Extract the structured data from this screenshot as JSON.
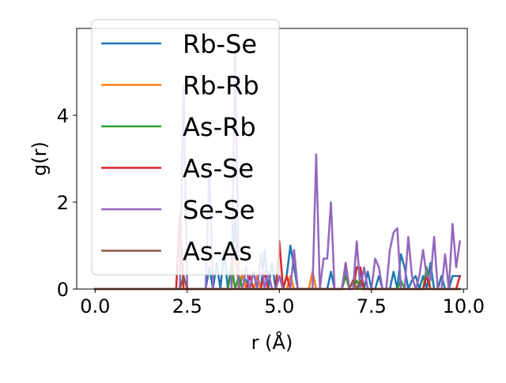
{
  "chart_data": {
    "type": "line",
    "xlabel": "r (Å)",
    "ylabel": "g(r)",
    "xlim": [
      -0.5,
      10.1
    ],
    "ylim": [
      0,
      6.0
    ],
    "xticks": [
      "0.0",
      "2.5",
      "5.0",
      "7.5",
      "10.0"
    ],
    "yticks": [
      "0",
      "2",
      "4"
    ],
    "grid": false,
    "legend_position": "upper-left",
    "series": [
      {
        "name": "Rb-Se",
        "color": "#1f77b4",
        "x": [
          0,
          2.9,
          3.0,
          3.1,
          3.2,
          3.3,
          3.4,
          3.5,
          3.6,
          3.7,
          3.8,
          3.9,
          4.0,
          4.1,
          4.2,
          4.3,
          4.4,
          4.5,
          4.6,
          4.7,
          4.8,
          4.9,
          5.0,
          5.1,
          5.2,
          5.3,
          5.4,
          5.5,
          5.6,
          5.7,
          5.8,
          5.9,
          6.0,
          6.1,
          6.2,
          6.3,
          6.4,
          6.5,
          6.6,
          6.7,
          6.8,
          6.9,
          7.0,
          7.1,
          7.2,
          7.3,
          7.4,
          7.5,
          7.6,
          7.7,
          7.8,
          7.9,
          8.0,
          8.1,
          8.2,
          8.3,
          8.4,
          8.5,
          8.6,
          8.7,
          8.8,
          8.9,
          9.0,
          9.1,
          9.2,
          9.3,
          9.4,
          9.5,
          9.6,
          9.7,
          9.8,
          9.9
        ],
        "y": [
          0,
          0,
          0,
          0.5,
          0,
          0.6,
          0,
          0.9,
          0,
          0.4,
          1.6,
          0,
          0.3,
          0.2,
          0,
          0.4,
          0,
          0,
          0.9,
          0,
          0.6,
          0,
          0.3,
          0,
          0.3,
          1.0,
          0.5,
          0,
          0,
          0,
          0,
          0,
          0,
          0,
          0,
          0,
          0.4,
          0,
          0,
          0,
          0.5,
          0,
          0,
          0.5,
          0.4,
          0,
          0.4,
          0,
          0,
          0.3,
          0,
          0,
          0,
          0.4,
          0,
          0.8,
          0.5,
          0,
          0.2,
          0.3,
          0,
          0.3,
          0,
          0.6,
          0,
          0,
          0.3,
          0,
          0,
          0.3,
          0.3,
          0.3
        ]
      },
      {
        "name": "Rb-Rb",
        "color": "#ff7f0e",
        "x": [
          0,
          3.7,
          3.8,
          3.9,
          4.0,
          4.1,
          4.2,
          4.3,
          4.4,
          4.5,
          4.6,
          4.7,
          4.8,
          4.9,
          5.0,
          5.1,
          5.2,
          5.3,
          5.4,
          5.5,
          5.6,
          5.7,
          5.8,
          5.9,
          6.0,
          6.1,
          6.2,
          6.3,
          6.4,
          6.5,
          6.6,
          6.7,
          6.8,
          6.9,
          7.0,
          7.1,
          7.2,
          7.3,
          7.4,
          7.5,
          7.6,
          7.7,
          7.8,
          7.9,
          8.0,
          8.1,
          8.2,
          8.3,
          8.4,
          8.5,
          8.6,
          8.7,
          8.8,
          8.9,
          9.0,
          9.1,
          9.2,
          9.3,
          9.4,
          9.5,
          9.6,
          9.7,
          9.8,
          9.9
        ],
        "y": [
          0,
          0,
          0.9,
          0,
          0.4,
          0,
          0,
          0,
          0.3,
          0,
          0,
          0,
          0,
          0,
          0.3,
          0,
          0,
          0.3,
          0,
          0,
          0,
          0,
          0,
          0.4,
          0,
          0,
          0,
          0,
          0,
          0,
          0,
          0,
          0.6,
          0,
          0,
          0,
          0,
          0,
          0,
          0,
          0,
          0,
          0,
          0,
          0,
          0,
          0,
          0,
          0,
          0,
          0,
          0,
          0,
          0,
          0,
          0,
          0,
          0,
          0,
          0,
          0,
          0,
          0,
          0
        ]
      },
      {
        "name": "As-Rb",
        "color": "#2ca02c",
        "x": [
          0,
          3.6,
          3.7,
          3.8,
          3.9,
          4.0,
          4.1,
          4.2,
          4.3,
          4.4,
          4.5,
          4.6,
          4.7,
          4.8,
          4.9,
          5.0,
          5.1,
          5.2,
          5.3,
          5.4,
          5.5,
          5.6,
          5.7,
          5.8,
          5.9,
          6.0,
          6.1,
          6.2,
          6.3,
          6.4,
          6.5,
          6.6,
          6.7,
          6.8,
          6.9,
          7.0,
          7.1,
          7.2,
          7.3,
          7.4,
          7.5,
          7.6,
          7.7,
          7.8,
          7.9,
          8.0,
          8.1,
          8.2,
          8.3,
          8.4,
          8.5,
          8.6,
          8.7,
          8.8,
          8.9,
          9.0,
          9.1,
          9.2,
          9.3,
          9.4,
          9.5,
          9.6,
          9.7,
          9.8,
          9.9
        ],
        "y": [
          0,
          0,
          0.6,
          0,
          0.3,
          0,
          0,
          0,
          0,
          0,
          0,
          0,
          0,
          0,
          0,
          0,
          0,
          0,
          0,
          0,
          0,
          0,
          0,
          0,
          0,
          0,
          0,
          0,
          0,
          0,
          0,
          0,
          0,
          0.3,
          0,
          0,
          0.2,
          0,
          0,
          0,
          0,
          0,
          0,
          0,
          0,
          0,
          0,
          0,
          0.2,
          0,
          0,
          0,
          0,
          0,
          0,
          0.5,
          0,
          0,
          0,
          0,
          0,
          0,
          0,
          0,
          0
        ]
      },
      {
        "name": "As-Se",
        "color": "#d62728",
        "x": [
          0,
          2.2,
          2.3,
          2.4,
          2.5,
          2.6,
          2.7,
          2.8,
          2.9,
          3.0,
          3.1,
          3.2,
          3.3,
          3.4,
          3.5,
          3.6,
          3.7,
          3.8,
          3.9,
          4.0,
          4.1,
          4.2,
          4.3,
          4.4,
          4.5,
          4.6,
          4.7,
          4.8,
          4.9,
          5.0,
          5.1,
          5.2,
          5.3,
          5.4,
          5.5,
          5.6,
          5.7,
          5.8,
          5.9,
          6.0,
          6.1,
          6.2,
          6.3,
          6.4,
          6.5,
          6.6,
          6.7,
          6.8,
          6.9,
          7.0,
          7.1,
          7.2,
          7.3,
          7.4,
          7.5,
          7.6,
          7.7,
          7.8,
          7.9,
          8.0,
          8.1,
          8.2,
          8.3,
          8.4,
          8.5,
          8.6,
          8.7,
          8.8,
          8.9,
          9.0,
          9.1,
          9.2,
          9.3,
          9.4,
          9.5,
          9.6,
          9.7,
          9.8,
          9.9
        ],
        "y": [
          0,
          0,
          1.7,
          0,
          0,
          0,
          0,
          0,
          0,
          0,
          0,
          0,
          0,
          0,
          0,
          0,
          0,
          0,
          0,
          0,
          0,
          0.3,
          0,
          0,
          0,
          0.4,
          0,
          0,
          0,
          1.1,
          0,
          0.3,
          0,
          0,
          0,
          0,
          0,
          0,
          0,
          0,
          0,
          0,
          0,
          0,
          0,
          0,
          0,
          0.6,
          0,
          0,
          0.5,
          0.5,
          0,
          0,
          0,
          0,
          0,
          0,
          0,
          0,
          0,
          0,
          0,
          0,
          0,
          0,
          0,
          0,
          0,
          0.3,
          0,
          0,
          0,
          0,
          0,
          0,
          0,
          0,
          0.3
        ]
      },
      {
        "name": "Se-Se",
        "color": "#9467bd",
        "x": [
          0,
          2.3,
          2.4,
          2.5,
          2.6,
          2.7,
          2.8,
          2.9,
          3.0,
          3.1,
          3.2,
          3.3,
          3.4,
          3.5,
          3.6,
          3.7,
          3.8,
          3.9,
          4.0,
          4.1,
          4.2,
          4.3,
          4.4,
          4.5,
          4.6,
          4.7,
          4.8,
          4.9,
          5.0,
          5.1,
          5.2,
          5.3,
          5.4,
          5.5,
          5.6,
          5.7,
          5.8,
          5.9,
          6.0,
          6.1,
          6.2,
          6.3,
          6.4,
          6.5,
          6.6,
          6.7,
          6.8,
          6.9,
          7.0,
          7.1,
          7.2,
          7.3,
          7.4,
          7.5,
          7.6,
          7.7,
          7.8,
          7.9,
          8.0,
          8.1,
          8.2,
          8.3,
          8.4,
          8.5,
          8.6,
          8.7,
          8.8,
          8.9,
          9.0,
          9.1,
          9.2,
          9.3,
          9.4,
          9.5,
          9.6,
          9.7,
          9.8,
          9.9
        ],
        "y": [
          0,
          0,
          4.7,
          0,
          0,
          0,
          0,
          0,
          0,
          2.8,
          0,
          0,
          0,
          0,
          0,
          0,
          5.5,
          0,
          0,
          0.5,
          0,
          0.4,
          0,
          0.8,
          0,
          0.4,
          0,
          0,
          0.3,
          0,
          0,
          0,
          0.9,
          0,
          0,
          0,
          0,
          0,
          3.1,
          0,
          0.7,
          0.7,
          2.0,
          0,
          0,
          0,
          0.6,
          0,
          0,
          1.1,
          0,
          0.5,
          0,
          0,
          0.7,
          0.5,
          0,
          0,
          0.9,
          1.3,
          1.4,
          0,
          0,
          1.2,
          0.3,
          0,
          0.3,
          0.9,
          0.3,
          0.2,
          1.2,
          0,
          0,
          0.8,
          0,
          1.5,
          0.5,
          1.1
        ]
      },
      {
        "name": "As-As",
        "color": "#8c564b",
        "x": [
          0,
          2.3,
          2.4,
          2.5,
          6.9,
          7.0,
          7.1,
          7.2,
          7.3,
          9.9
        ],
        "y": [
          0,
          0,
          0.3,
          0,
          0,
          0.2,
          0,
          0.2,
          0,
          0
        ]
      }
    ]
  }
}
